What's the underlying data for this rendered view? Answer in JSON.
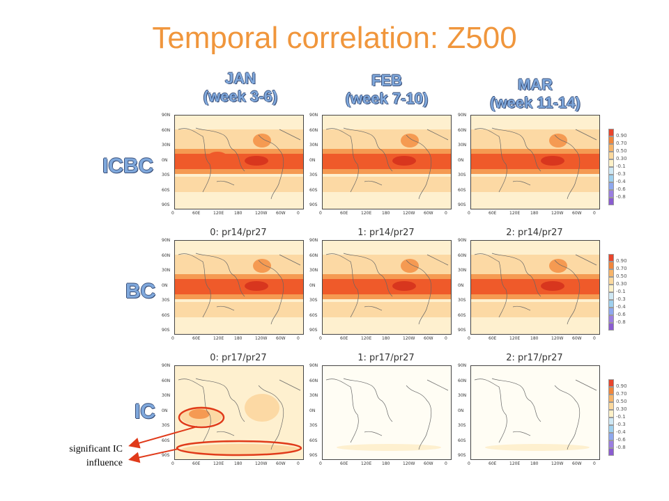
{
  "title": "Temporal correlation: Z500",
  "columns": [
    {
      "month": "JAN",
      "weeks": "(week 3-6)"
    },
    {
      "month": "FEB",
      "weeks": "(week 7-10)"
    },
    {
      "month": "MAR",
      "weeks": "(week 11-14)"
    }
  ],
  "rows": [
    {
      "label": "ICBC",
      "panel_titles": [
        "",
        "",
        ""
      ]
    },
    {
      "label": "BC",
      "panel_titles": [
        "0: pr14/pr27",
        "1: pr14/pr27",
        "2: pr14/pr27"
      ]
    },
    {
      "label": "IC",
      "panel_titles": [
        "0: pr17/pr27",
        "1: pr17/pr27",
        "2: pr17/pr27"
      ]
    }
  ],
  "lat_labels": [
    "90N",
    "60N",
    "30N",
    "0N",
    "30S",
    "60S",
    "90S"
  ],
  "lon_labels": [
    "0",
    "60E",
    "120E",
    "180",
    "120W",
    "60W",
    "0"
  ],
  "colorbar": {
    "labels": [
      "0.90",
      "0.70",
      "0.50",
      "0.30",
      "-0.1",
      "-0.3",
      "-0.4",
      "-0.6",
      "-0.8"
    ],
    "colors": [
      "#e8452c",
      "#f0863c",
      "#f6b469",
      "#fbd99e",
      "#fdf1c8",
      "#cfe8f4",
      "#9fd0ee",
      "#8fa8ee",
      "#9b7ee0",
      "#8a5cd0"
    ]
  },
  "annotation": {
    "line1": "significant IC",
    "line2": "influence",
    "color": "#e03a1a"
  },
  "colors": {
    "title": "#f0963c",
    "header": "#7fa8dc",
    "strong": "#ef5a2a",
    "medium": "#f59a52",
    "light": "#fcd9a4",
    "pale": "#fef0cf"
  }
}
